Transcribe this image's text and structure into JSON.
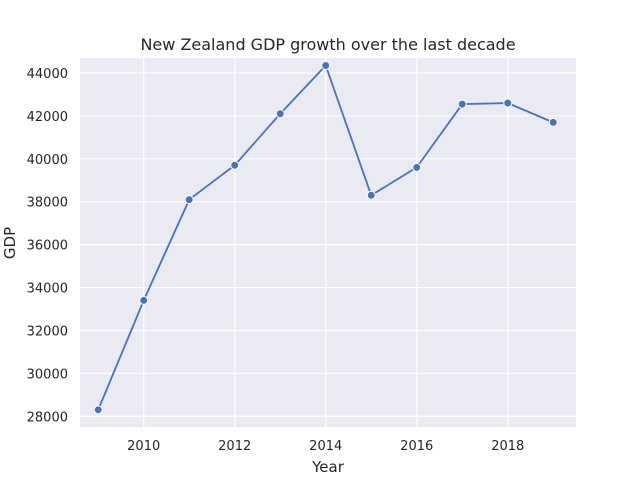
{
  "chart_data": {
    "type": "line",
    "title": "New Zealand GDP growth over the last decade",
    "xlabel": "Year",
    "ylabel": "GDP",
    "x": [
      2009,
      2010,
      2011,
      2012,
      2013,
      2014,
      2015,
      2016,
      2017,
      2018,
      2019
    ],
    "series": [
      {
        "values": [
          28300,
          33400,
          38100,
          39700,
          42100,
          44350,
          38300,
          39600,
          42550,
          42600,
          41700
        ],
        "color": "#4c72b0"
      }
    ],
    "xlim": [
      2008.6,
      2019.5
    ],
    "ylim": [
      27500,
      44700
    ],
    "xticks": [
      "2010",
      "2012",
      "2014",
      "2016",
      "2018"
    ],
    "yticks": [
      "28000",
      "30000",
      "32000",
      "34000",
      "36000",
      "38000",
      "40000",
      "42000",
      "44000"
    ],
    "grid": true,
    "background": "#eaeaf2",
    "grid_color": "#ffffff"
  }
}
